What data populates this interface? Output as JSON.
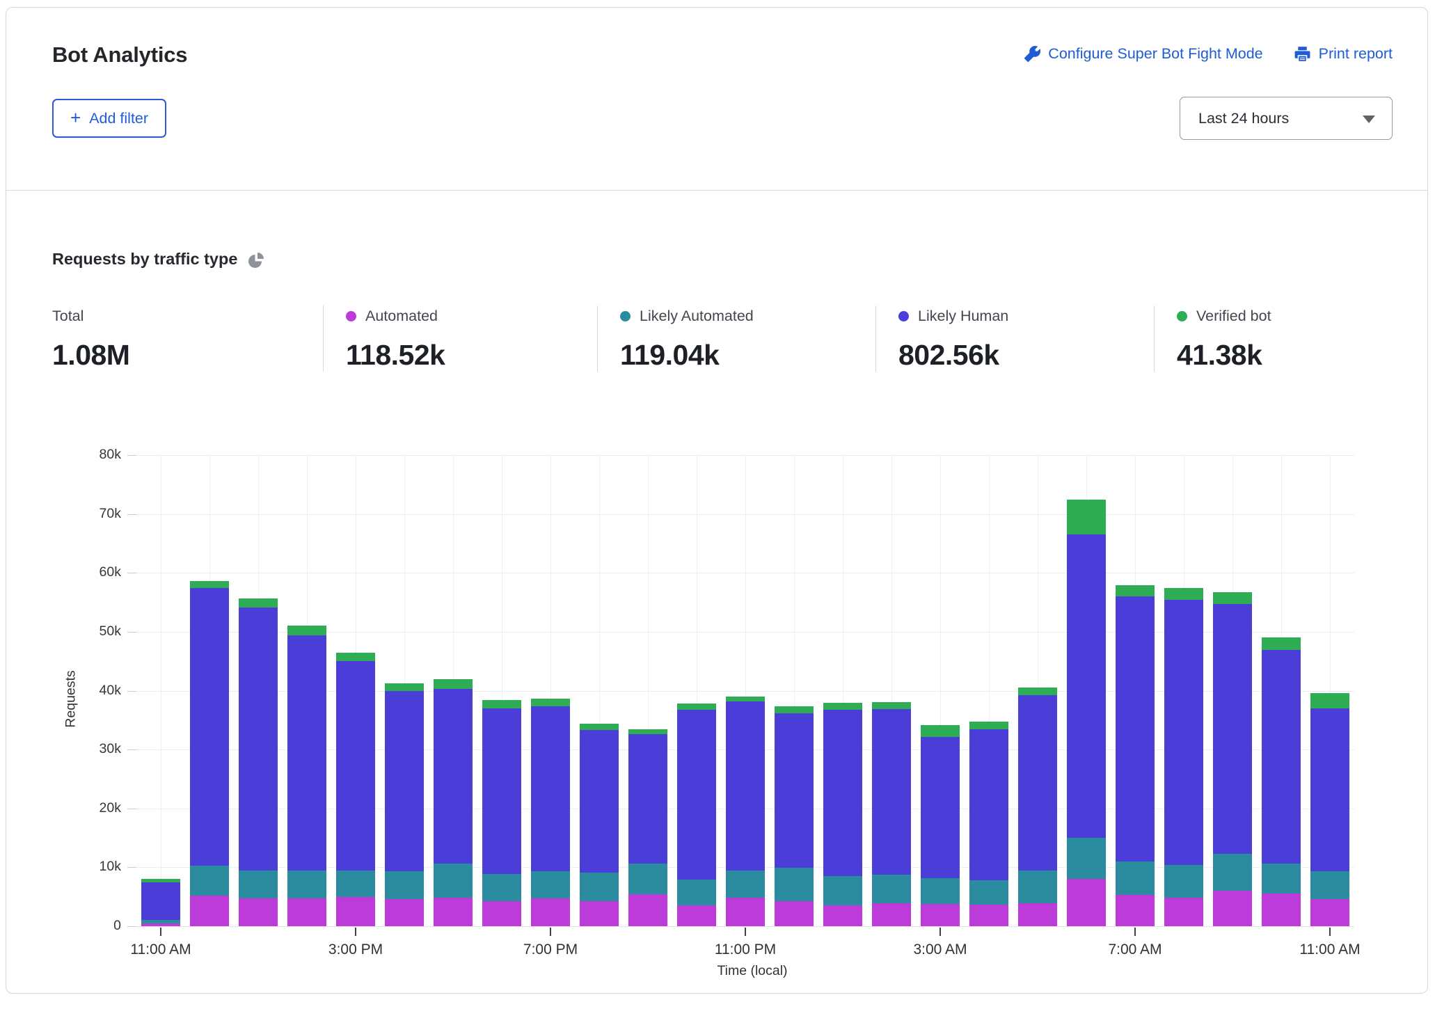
{
  "header": {
    "title": "Bot Analytics",
    "configure_link": "Configure Super Bot Fight Mode",
    "print_link": "Print report"
  },
  "toolbar": {
    "plus": "+",
    "add_filter_label": "Add filter",
    "time_range_value": "Last 24 hours"
  },
  "section": {
    "title": "Requests by traffic type"
  },
  "stats": {
    "items": [
      {
        "label": "Total",
        "value": "1.08M",
        "color": ""
      },
      {
        "label": "Automated",
        "value": "118.52k",
        "color": "#bd3bd8"
      },
      {
        "label": "Likely Automated",
        "value": "119.04k",
        "color": "#2b8b9f"
      },
      {
        "label": "Likely Human",
        "value": "802.56k",
        "color": "#4b3dd8"
      },
      {
        "label": "Verified bot",
        "value": "41.38k",
        "color": "#2fad55"
      }
    ]
  },
  "chart_data": {
    "type": "bar",
    "stacked": true,
    "title": "Requests by traffic type",
    "xlabel": "Time (local)",
    "ylabel": "Requests",
    "unit": "thousands of requests per hourly bar",
    "ylim": [
      0,
      80
    ],
    "grid": true,
    "yticks": [
      "0",
      "10k",
      "20k",
      "30k",
      "40k",
      "50k",
      "60k",
      "70k",
      "80k"
    ],
    "x_ticks": [
      {
        "slot": 0,
        "label": "11:00 AM"
      },
      {
        "slot": 4,
        "label": "3:00 PM"
      },
      {
        "slot": 8,
        "label": "7:00 PM"
      },
      {
        "slot": 12,
        "label": "11:00 PM"
      },
      {
        "slot": 16,
        "label": "3:00 AM"
      },
      {
        "slot": 20,
        "label": "7:00 AM"
      },
      {
        "slot": 24,
        "label": "11:00 AM"
      }
    ],
    "series": [
      {
        "name": "Automated",
        "color": "#bd3bd8",
        "values": [
          0.5,
          5.2,
          4.7,
          4.7,
          5.0,
          4.6,
          4.9,
          4.2,
          4.7,
          4.3,
          5.4,
          3.5,
          4.8,
          4.2,
          3.6,
          3.9,
          3.8,
          3.7,
          3.9,
          8.0,
          5.3,
          4.8,
          6.0,
          5.5,
          4.6
        ]
      },
      {
        "name": "Likely Automated",
        "color": "#2b8b9f",
        "values": [
          0.6,
          5.1,
          4.7,
          4.7,
          4.5,
          4.7,
          5.7,
          4.7,
          4.6,
          4.8,
          5.2,
          4.4,
          4.6,
          5.7,
          4.9,
          4.8,
          4.4,
          4.1,
          5.5,
          7.0,
          5.7,
          5.6,
          6.3,
          5.1,
          4.7
        ]
      },
      {
        "name": "Likely Human",
        "color": "#4b3dd8",
        "values": [
          6.4,
          47.1,
          44.7,
          40.0,
          35.5,
          30.7,
          29.7,
          28.1,
          28.1,
          24.2,
          22.0,
          28.9,
          28.8,
          26.3,
          28.3,
          28.2,
          23.9,
          25.7,
          29.8,
          51.5,
          45.0,
          45.0,
          42.4,
          36.3,
          27.7
        ]
      },
      {
        "name": "Verified bot",
        "color": "#2fad55",
        "values": [
          0.5,
          1.2,
          1.6,
          1.7,
          1.4,
          1.3,
          1.6,
          1.4,
          1.3,
          1.1,
          0.8,
          1.0,
          0.8,
          1.1,
          1.1,
          1.1,
          2.0,
          1.3,
          1.3,
          6.0,
          1.9,
          2.0,
          2.0,
          2.1,
          2.6
        ]
      }
    ]
  }
}
